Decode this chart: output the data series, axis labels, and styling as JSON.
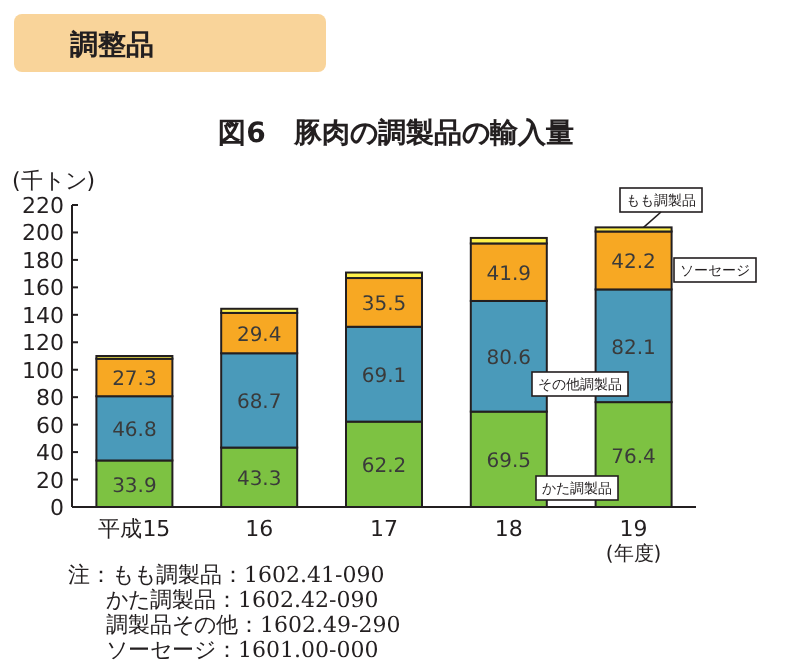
{
  "chart_data": {
    "type": "bar",
    "stacked": true,
    "subtitle": "調整品",
    "title": "図6　豚肉の調製品の輸入量",
    "ylabel": "(千トン)",
    "xlabel": "(年度)",
    "categories": [
      "平成15",
      "16",
      "17",
      "18",
      "19"
    ],
    "ylim": [
      0,
      220
    ],
    "yticks": [
      0,
      20,
      40,
      60,
      80,
      100,
      120,
      140,
      160,
      180,
      200,
      220
    ],
    "series": [
      {
        "name": "かた調製品",
        "color": "#7dc242",
        "values": [
          33.9,
          43.3,
          62.2,
          69.5,
          76.4
        ],
        "value_labels": [
          "33.9",
          "43.3",
          "62.2",
          "69.5",
          "76.4"
        ]
      },
      {
        "name": "その他調製品",
        "color": "#4a9aba",
        "values": [
          46.8,
          68.7,
          69.1,
          80.6,
          82.1
        ],
        "value_labels": [
          "46.8",
          "68.7",
          "69.1",
          "80.6",
          "82.1"
        ]
      },
      {
        "name": "ソーセージ",
        "color": "#f7a823",
        "values": [
          27.3,
          29.4,
          35.5,
          41.9,
          42.2
        ],
        "value_labels": [
          "27.3",
          "29.4",
          "35.5",
          "41.9",
          "42.2"
        ]
      },
      {
        "name": "もも調製品",
        "color": "#fff14a",
        "values": [
          2,
          3,
          4,
          4,
          3
        ]
      }
    ],
    "annotations": [
      "注：もも調製品：1602.41-090",
      "かた調製品：1602.42-090",
      "調製品その他：1602.49-290",
      "ソーセージ：1601.00-000"
    ]
  }
}
